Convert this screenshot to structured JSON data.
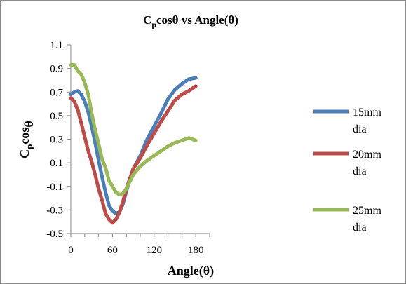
{
  "chart_data": {
    "type": "line",
    "title": {
      "main": "C",
      "sub": "p",
      "rest": "cosθ vs Angle(θ)"
    },
    "xlabel": "Angle(θ)",
    "ylabel": {
      "main": "C",
      "sub": "p",
      "rest": "cos",
      "tail": "θ"
    },
    "xlim": [
      0,
      200
    ],
    "ylim": [
      -0.5,
      1.1
    ],
    "xticks": [
      0,
      60,
      120,
      180
    ],
    "yticks": [
      -0.5,
      -0.3,
      -0.1,
      0.1,
      0.3,
      0.5,
      0.7,
      0.9,
      1.1
    ],
    "grid": false,
    "legend_position": "right",
    "series": [
      {
        "name": "15mm dia",
        "name_lines": [
          "15mm",
          "dia"
        ],
        "color": "#4a7ebb",
        "x": [
          0,
          5,
          10,
          15,
          20,
          25,
          30,
          35,
          40,
          45,
          50,
          55,
          60,
          65,
          70,
          75,
          80,
          90,
          100,
          110,
          120,
          130,
          140,
          150,
          160,
          170,
          180
        ],
        "y": [
          0.68,
          0.7,
          0.71,
          0.68,
          0.62,
          0.53,
          0.41,
          0.27,
          0.12,
          -0.02,
          -0.15,
          -0.26,
          -0.31,
          -0.33,
          -0.32,
          -0.25,
          -0.14,
          0.05,
          0.16,
          0.3,
          0.41,
          0.52,
          0.64,
          0.72,
          0.77,
          0.81,
          0.82
        ]
      },
      {
        "name": "20mm dia",
        "name_lines": [
          "20mm",
          "dia"
        ],
        "color": "#be4b48",
        "x": [
          0,
          5,
          10,
          15,
          20,
          25,
          30,
          35,
          40,
          45,
          50,
          55,
          60,
          65,
          70,
          75,
          80,
          90,
          100,
          110,
          120,
          130,
          140,
          150,
          160,
          170,
          180
        ],
        "y": [
          0.65,
          0.62,
          0.55,
          0.44,
          0.32,
          0.2,
          0.11,
          0.0,
          -0.12,
          -0.22,
          -0.33,
          -0.38,
          -0.41,
          -0.38,
          -0.32,
          -0.23,
          -0.12,
          0.05,
          0.14,
          0.25,
          0.35,
          0.45,
          0.54,
          0.63,
          0.68,
          0.71,
          0.75
        ]
      },
      {
        "name": "25mm dia",
        "name_lines": [
          "25mm",
          "dia"
        ],
        "color": "#98b954",
        "x": [
          0,
          5,
          10,
          15,
          20,
          25,
          30,
          35,
          40,
          45,
          50,
          55,
          60,
          65,
          70,
          75,
          80,
          90,
          100,
          110,
          120,
          130,
          140,
          150,
          160,
          170,
          180
        ],
        "y": [
          0.93,
          0.93,
          0.88,
          0.85,
          0.78,
          0.68,
          0.52,
          0.38,
          0.26,
          0.13,
          0.06,
          -0.05,
          -0.1,
          -0.15,
          -0.17,
          -0.16,
          -0.12,
          0.0,
          0.07,
          0.12,
          0.16,
          0.2,
          0.24,
          0.27,
          0.29,
          0.31,
          0.29
        ]
      }
    ]
  }
}
